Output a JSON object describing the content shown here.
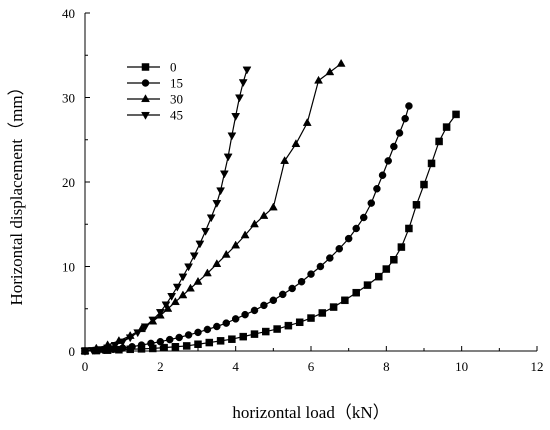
{
  "chart_data": {
    "type": "line",
    "title": "",
    "xlabel": "horizontal load（kN）",
    "ylabel": "Horizontal displacement（mm）",
    "xlim": [
      0,
      12
    ],
    "ylim": [
      0,
      40
    ],
    "x_ticks": [
      "0",
      "2",
      "4",
      "6",
      "8",
      "10",
      "12"
    ],
    "y_ticks": [
      "0",
      "10",
      "20",
      "30",
      "40"
    ],
    "grid": false,
    "legend_position": "top-left",
    "series": [
      {
        "name": "0",
        "marker": "square",
        "x": [
          0,
          0.3,
          0.6,
          0.9,
          1.2,
          1.5,
          1.8,
          2.1,
          2.4,
          2.7,
          3.0,
          3.3,
          3.6,
          3.9,
          4.2,
          4.5,
          4.8,
          5.1,
          5.4,
          5.7,
          6.0,
          6.3,
          6.6,
          6.9,
          7.2,
          7.5,
          7.8,
          8.0,
          8.2,
          8.4,
          8.6,
          8.8,
          9.0,
          9.2,
          9.4,
          9.6,
          9.85
        ],
        "y": [
          0,
          0.05,
          0.1,
          0.15,
          0.2,
          0.25,
          0.3,
          0.4,
          0.5,
          0.6,
          0.8,
          1.0,
          1.2,
          1.4,
          1.7,
          2.0,
          2.3,
          2.6,
          3.0,
          3.4,
          3.9,
          4.5,
          5.2,
          6.0,
          6.9,
          7.8,
          8.8,
          9.7,
          10.8,
          12.3,
          14.5,
          17.3,
          19.7,
          22.2,
          24.8,
          26.5,
          28.0
        ]
      },
      {
        "name": "15",
        "marker": "circle",
        "x": [
          0,
          0.25,
          0.5,
          0.75,
          1.0,
          1.25,
          1.5,
          1.75,
          2.0,
          2.25,
          2.5,
          2.75,
          3.0,
          3.25,
          3.5,
          3.75,
          4.0,
          4.25,
          4.5,
          4.75,
          5.0,
          5.25,
          5.5,
          5.75,
          6.0,
          6.25,
          6.5,
          6.75,
          7.0,
          7.2,
          7.4,
          7.6,
          7.75,
          7.9,
          8.05,
          8.2,
          8.35,
          8.5,
          8.6
        ],
        "y": [
          0,
          0.05,
          0.1,
          0.2,
          0.35,
          0.5,
          0.7,
          0.9,
          1.1,
          1.35,
          1.6,
          1.9,
          2.2,
          2.55,
          2.9,
          3.3,
          3.8,
          4.3,
          4.8,
          5.4,
          6.0,
          6.7,
          7.4,
          8.2,
          9.1,
          10.0,
          11.0,
          12.1,
          13.3,
          14.5,
          15.8,
          17.5,
          19.2,
          20.8,
          22.5,
          24.2,
          25.8,
          27.5,
          29.0
        ]
      },
      {
        "name": "30",
        "marker": "triangle-up",
        "x": [
          0,
          0.3,
          0.6,
          0.9,
          1.2,
          1.5,
          1.8,
          2.0,
          2.2,
          2.4,
          2.6,
          2.8,
          3.0,
          3.25,
          3.5,
          3.75,
          4.0,
          4.25,
          4.5,
          4.75,
          5.0,
          5.3,
          5.6,
          5.9,
          6.2,
          6.5,
          6.8
        ],
        "y": [
          0,
          0.3,
          0.7,
          1.2,
          1.8,
          2.6,
          3.5,
          4.2,
          5.0,
          5.8,
          6.6,
          7.4,
          8.2,
          9.2,
          10.3,
          11.4,
          12.5,
          13.7,
          15.0,
          16.0,
          17.0,
          22.5,
          24.5,
          27.0,
          32.0,
          33.0,
          34.0
        ]
      },
      {
        "name": "45",
        "marker": "triangle-down",
        "x": [
          0,
          0.2,
          0.4,
          0.6,
          0.8,
          1.0,
          1.2,
          1.4,
          1.6,
          1.8,
          2.0,
          2.15,
          2.3,
          2.45,
          2.6,
          2.75,
          2.9,
          3.05,
          3.2,
          3.35,
          3.5,
          3.6,
          3.7,
          3.8,
          3.9,
          4.0,
          4.1,
          4.2,
          4.3
        ],
        "y": [
          0,
          0.1,
          0.2,
          0.4,
          0.7,
          1.1,
          1.6,
          2.2,
          2.9,
          3.7,
          4.6,
          5.5,
          6.5,
          7.6,
          8.8,
          10.0,
          11.3,
          12.7,
          14.2,
          15.8,
          17.5,
          19.0,
          21.0,
          23.0,
          25.5,
          27.8,
          30.0,
          31.8,
          33.3
        ]
      }
    ]
  }
}
